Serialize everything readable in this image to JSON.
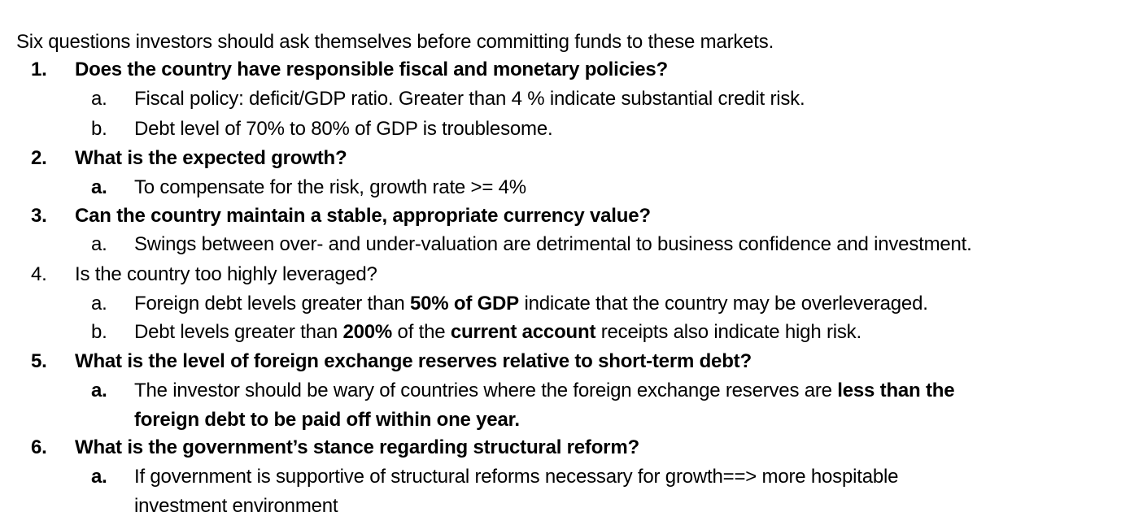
{
  "intro": "Six questions investors should ask themselves before committing funds to these markets.",
  "questions": [
    {
      "number": "1.",
      "text": "Does the country have responsible fiscal and monetary policies?",
      "subs": [
        {
          "letter": "a.",
          "parts": [
            "Fiscal policy: deficit/GDP ratio. Greater than 4 % indicate substantial credit risk."
          ]
        },
        {
          "letter": "b.",
          "parts": [
            "Debt level of 70% to 80% of GDP is troublesome."
          ]
        }
      ]
    },
    {
      "number": "2.",
      "text": "What is the expected growth?",
      "subs": [
        {
          "letter": "a.",
          "parts": [
            "To compensate for the risk, growth rate >= 4%"
          ]
        }
      ]
    },
    {
      "number": "3.",
      "text": "Can the country maintain a stable, appropriate currency value?",
      "subs": [
        {
          "letter": "a.",
          "parts": [
            "Swings between over- and under-valuation are detrimental to business confidence and investment."
          ]
        }
      ]
    },
    {
      "number": "4.",
      "text": "Is the country too highly leveraged?",
      "subs": [
        {
          "letter": "a.",
          "parts": [
            "Foreign debt levels greater than ",
            "50% of GDP",
            " indicate that the country may be overleveraged."
          ]
        },
        {
          "letter": "b.",
          "parts": [
            "Debt levels greater than ",
            "200%",
            " of the ",
            "current account",
            " receipts also indicate high risk."
          ]
        }
      ]
    },
    {
      "number": "5.",
      "text": "What is the level of foreign exchange reserves relative to short-term debt?",
      "subs": [
        {
          "letter": "a.",
          "parts": [
            "The investor should be wary of countries where the foreign exchange reserves are ",
            "less than the",
            "foreign debt to be paid off within one year."
          ]
        }
      ]
    },
    {
      "number": "6.",
      "text": "What is the government’s stance regarding structural reform?",
      "subs": [
        {
          "letter": "a.",
          "parts": [
            "If government is supportive of structural reforms necessary for growth==> more hospitable",
            "investment environment"
          ]
        }
      ]
    }
  ]
}
